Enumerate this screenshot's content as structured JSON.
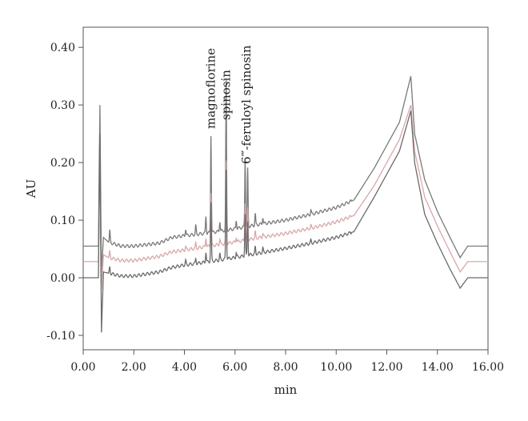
{
  "chart_data": {
    "type": "line",
    "title": "",
    "xlabel": "min",
    "ylabel": "AU",
    "xlim": [
      0.0,
      16.0
    ],
    "ylim": [
      -0.125,
      0.435
    ],
    "grid": false,
    "legend": "none",
    "x_ticks": [
      "0.00",
      "2.00",
      "4.00",
      "6.00",
      "8.00",
      "10.00",
      "12.00",
      "14.00",
      "16.00"
    ],
    "x_tick_values": [
      0,
      2,
      4,
      6,
      8,
      10,
      12,
      14,
      16
    ],
    "y_ticks": [
      "-0.10",
      "0.00",
      "0.10",
      "0.20",
      "0.30",
      "0.40"
    ],
    "y_tick_values": [
      -0.1,
      0.0,
      0.1,
      0.2,
      0.3,
      0.4
    ],
    "annotations": [
      {
        "text": "magnoflorine",
        "x": 5.05
      },
      {
        "text": "spinosin",
        "x": 5.65
      },
      {
        "text": "6‴-feruloyl spinosin",
        "x": 6.45
      }
    ],
    "series": [
      {
        "color": "#7a7a7a",
        "x": [
          0.0,
          0.6,
          0.66,
          0.72,
          0.8,
          1.0,
          1.5,
          2.0,
          3.0,
          3.5,
          4.0,
          5.0,
          6.0,
          7.0,
          8.0,
          9.0,
          10.0,
          10.7,
          11.5,
          12.5,
          12.95,
          13.1,
          13.5,
          14.0,
          14.5,
          14.9,
          15.2,
          16.0
        ],
        "y": [
          0.055,
          0.055,
          0.3,
          0.01,
          0.07,
          0.062,
          0.055,
          0.055,
          0.06,
          0.07,
          0.073,
          0.078,
          0.085,
          0.093,
          0.1,
          0.11,
          0.122,
          0.135,
          0.19,
          0.27,
          0.35,
          0.25,
          0.17,
          0.115,
          0.07,
          0.035,
          0.055,
          0.055
        ]
      },
      {
        "color": "#d8a8a8",
        "x": [
          0.0,
          0.6,
          0.66,
          0.72,
          0.8,
          1.0,
          1.5,
          2.0,
          3.0,
          3.5,
          4.0,
          5.0,
          6.0,
          7.0,
          8.0,
          9.0,
          10.0,
          10.7,
          11.5,
          12.5,
          12.95,
          13.1,
          13.5,
          14.0,
          14.5,
          14.9,
          15.2,
          16.0
        ],
        "y": [
          0.028,
          0.028,
          0.2,
          -0.02,
          0.04,
          0.035,
          0.03,
          0.03,
          0.037,
          0.045,
          0.048,
          0.055,
          0.062,
          0.07,
          0.077,
          0.086,
          0.097,
          0.108,
          0.16,
          0.24,
          0.3,
          0.22,
          0.14,
          0.09,
          0.045,
          0.01,
          0.028,
          0.028
        ]
      },
      {
        "color": "#6b6b6b",
        "x": [
          0.0,
          0.6,
          0.66,
          0.72,
          0.8,
          1.0,
          1.5,
          2.0,
          3.0,
          3.5,
          4.0,
          5.0,
          6.0,
          7.0,
          8.0,
          9.0,
          10.0,
          10.7,
          11.5,
          12.5,
          12.95,
          13.1,
          13.5,
          14.0,
          14.5,
          14.9,
          15.2,
          16.0
        ],
        "y": [
          0.0,
          0.0,
          0.25,
          -0.095,
          0.01,
          0.008,
          0.003,
          0.003,
          0.01,
          0.018,
          0.022,
          0.028,
          0.035,
          0.043,
          0.051,
          0.06,
          0.07,
          0.08,
          0.14,
          0.22,
          0.29,
          0.2,
          0.11,
          0.06,
          0.015,
          -0.018,
          0.0,
          0.0
        ]
      }
    ],
    "peaks": [
      {
        "x": 4.05,
        "height": 0.012
      },
      {
        "x": 4.45,
        "height": 0.015
      },
      {
        "x": 4.85,
        "height": 0.03
      },
      {
        "x": 5.05,
        "height": 0.17
      },
      {
        "x": 5.4,
        "height": 0.018
      },
      {
        "x": 5.65,
        "height": 0.26
      },
      {
        "x": 6.05,
        "height": 0.015
      },
      {
        "x": 6.4,
        "height": 0.12
      },
      {
        "x": 6.5,
        "height": 0.1
      },
      {
        "x": 6.8,
        "height": 0.02
      },
      {
        "x": 7.1,
        "height": 0.012
      },
      {
        "x": 9.0,
        "height": 0.008
      },
      {
        "x": 1.05,
        "height": 0.02
      }
    ]
  }
}
